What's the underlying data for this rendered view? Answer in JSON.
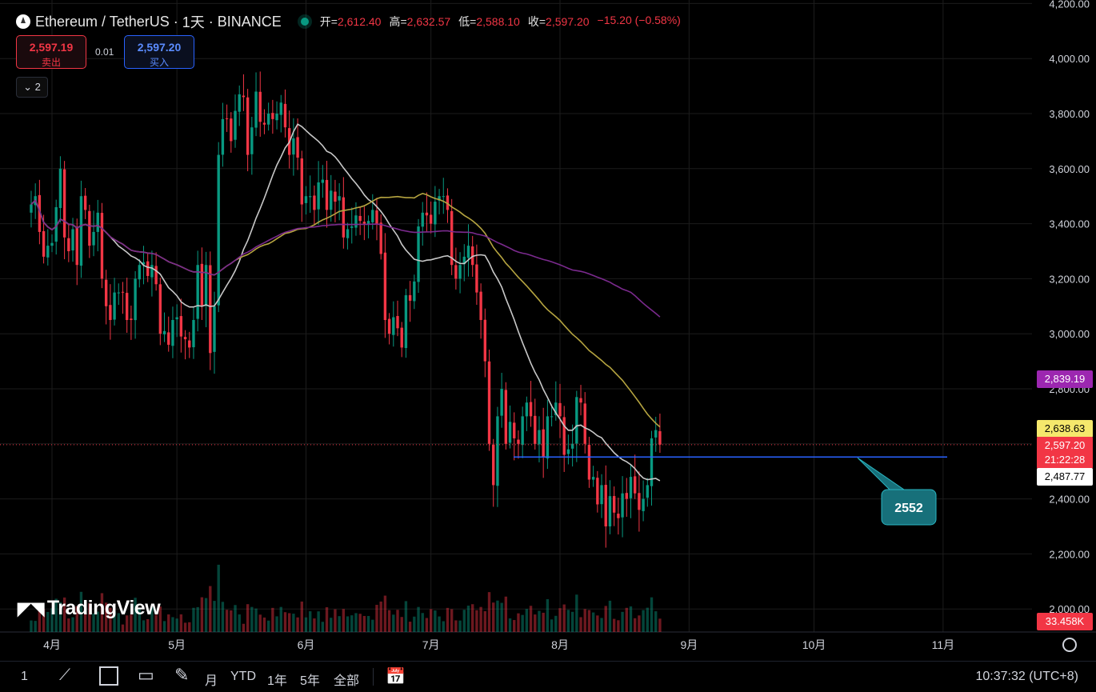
{
  "header": {
    "pair": "Ethereum / TetherUS",
    "interval": "1天",
    "exchange": "BINANCE",
    "ohlc": {
      "open_label": "开",
      "open": "2,612.40",
      "high_label": "高",
      "high": "2,632.57",
      "low_label": "低",
      "low": "2,588.10",
      "close_label": "收",
      "close": "2,597.20",
      "change": "−15.20 (−0.58%)"
    }
  },
  "trade": {
    "sell_price": "2,597.19",
    "sell_label": "卖出",
    "spread": "0.01",
    "buy_price": "2,597.20",
    "buy_label": "买入"
  },
  "indicators_toggle": {
    "count": "2"
  },
  "brand": {
    "logo_text": "TradingView"
  },
  "price_labels": {
    "ma_purple": "2,839.19",
    "ma_yellow": "2,638.63",
    "last_price": "2,597.20",
    "countdown": "21:22:28",
    "ma_white": "2,487.77",
    "volume": "33.458K"
  },
  "annotation": {
    "label": "2552"
  },
  "toolbar": {
    "first": "1",
    "range_month": "月",
    "ytd": "YTD",
    "y1": "1年",
    "y5": "5年",
    "all": "全部",
    "time": "10:37:32 (UTC+8)"
  },
  "colors": {
    "up": "#089981",
    "down": "#f23645",
    "ma_purple": "#7b2a8e",
    "ma_yellow": "#b5a440",
    "ma_white": "#c8c8c8",
    "hline": "#2962ff",
    "callout": "#17707a"
  },
  "chart_data": {
    "type": "candlestick",
    "symbol": "ETH/USDT",
    "y_axis": {
      "ticks": [
        4200,
        4000,
        3800,
        3600,
        3400,
        3200,
        3000,
        2800,
        2600,
        2400,
        2200,
        2000
      ],
      "tick_labels": [
        "4,200.00",
        "4,000.00",
        "3,800.00",
        "3,600.00",
        "3,400.00",
        "3,200.00",
        "3,000.00",
        "2,800.00",
        "2,600.00",
        "2,400.00",
        "2,200.00",
        "2,000.00"
      ]
    },
    "x_axis": {
      "labels": [
        "4月",
        "5月",
        "6月",
        "7月",
        "8月",
        "9月",
        "10月",
        "11月"
      ],
      "label_dates": [
        "2024-04-01",
        "2024-05-01",
        "2024-06-01",
        "2024-07-01",
        "2024-08-01",
        "2024-09-01",
        "2024-10-01",
        "2024-11-01"
      ]
    },
    "first_date": "2024-03-27",
    "closes": [
      3470,
      3500,
      3370,
      3280,
      3320,
      3330,
      3460,
      3600,
      3350,
      3300,
      3380,
      3250,
      3500,
      3450,
      3320,
      3370,
      3440,
      3200,
      3100,
      3050,
      3150,
      3150,
      3150,
      3050,
      3050,
      3200,
      3250,
      3260,
      3210,
      3250,
      3180,
      3000,
      3010,
      2960,
      3050,
      3060,
      2990,
      2980,
      2950,
      3050,
      3250,
      3100,
      3250,
      2930,
      3100,
      3650,
      3780,
      3780,
      3700,
      3810,
      3870,
      3860,
      3650,
      3750,
      3880,
      3770,
      3760,
      3800,
      3780,
      3800,
      3840,
      3750,
      3650,
      3710,
      3640,
      3470,
      3500,
      3500,
      3450,
      3550,
      3560,
      3450,
      3520,
      3480,
      3500,
      3350,
      3380,
      3390,
      3430,
      3410,
      3400,
      3410,
      3450,
      3400,
      3290,
      3050,
      3000,
      3060,
      3020,
      2950,
      3140,
      3120,
      3190,
      3390,
      3440,
      3430,
      3400,
      3480,
      3500,
      3500,
      3450,
      3250,
      3200,
      3250,
      3280,
      3320,
      3250,
      3150,
      3050,
      2900,
      2600,
      2450,
      2700,
      2800,
      2600,
      2680,
      2620,
      2600,
      2700,
      2750,
      2700,
      2600,
      2650,
      2550,
      2700,
      2700,
      2750,
      2700,
      2560,
      2580,
      2600,
      2770,
      2750,
      2600,
      2470,
      2480,
      2380,
      2450,
      2300,
      2410,
      2350,
      2330,
      2420,
      2400,
      2480,
      2420,
      2360,
      2400,
      2450,
      2620,
      2650,
      2597
    ],
    "ma_white_last": 2487.77,
    "ma_yellow_last": 2638.63,
    "ma_purple_last": 2839.19,
    "support_level": 2552
  }
}
